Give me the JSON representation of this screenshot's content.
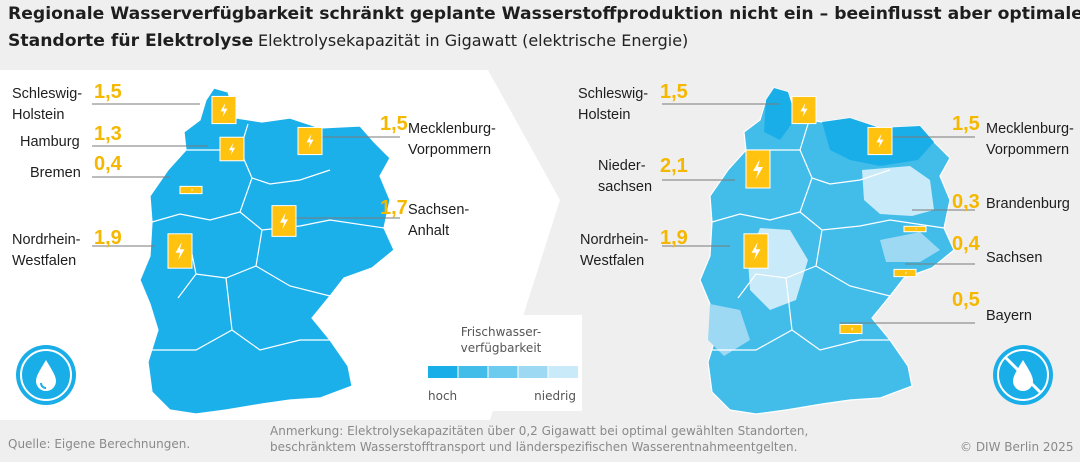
{
  "title": {
    "line1": "Regionale Wasserverfügbarkeit schränkt geplante Wasserstoffproduktion nicht ein – beeinflusst aber optimale",
    "line2": "Standorte für Elektrolyse",
    "subtitle": "Elektrolysekapazität in Gigawatt (elektrische Energie)"
  },
  "legend": {
    "title_line1": "Frischwasser-",
    "title_line2": "verfügbarkeit",
    "high": "hoch",
    "low": "niedrig",
    "colors": [
      "#1aaee8",
      "#42bdea",
      "#6ccbee",
      "#9dd9f3",
      "#c9eaf8"
    ]
  },
  "colors": {
    "map_left": "#1cb0ea",
    "accent": "#ffc20e",
    "label_value": "#f5b800",
    "border": "#ffffff",
    "leader": "#7a7a7a",
    "icon_circle": "#1aaee8"
  },
  "icons": [
    "water-drop-icon",
    "no-water-drop-icon",
    "lightning-icon",
    "arrow-icon"
  ],
  "chart_data": [
    {
      "type": "table",
      "panel": "left",
      "series": [
        {
          "region": [
            "Schleswig-",
            "Holstein"
          ],
          "value": 1.5,
          "value_label": "1,5"
        },
        {
          "region": [
            "Hamburg"
          ],
          "value": 1.3,
          "value_label": "1,3"
        },
        {
          "region": [
            "Bremen"
          ],
          "value": 0.4,
          "value_label": "0,4"
        },
        {
          "region": [
            "Nordrhein-",
            "Westfalen"
          ],
          "value": 1.9,
          "value_label": "1,9"
        },
        {
          "region": [
            "Mecklenburg-",
            "Vorpommern"
          ],
          "value": 1.5,
          "value_label": "1,5"
        },
        {
          "region": [
            "Sachsen-",
            "Anhalt"
          ],
          "value": 1.7,
          "value_label": "1,7"
        }
      ]
    },
    {
      "type": "table",
      "panel": "right",
      "series": [
        {
          "region": [
            "Schleswig-",
            "Holstein"
          ],
          "value": 1.5,
          "value_label": "1,5"
        },
        {
          "region": [
            "Nieder-",
            "sachsen"
          ],
          "value": 2.1,
          "value_label": "2,1"
        },
        {
          "region": [
            "Nordrhein-",
            "Westfalen"
          ],
          "value": 1.9,
          "value_label": "1,9"
        },
        {
          "region": [
            "Mecklenburg-",
            "Vorpommern"
          ],
          "value": 1.5,
          "value_label": "1,5"
        },
        {
          "region": [
            "Brandenburg"
          ],
          "value": 0.3,
          "value_label": "0,3"
        },
        {
          "region": [
            "Sachsen"
          ],
          "value": 0.4,
          "value_label": "0,4"
        },
        {
          "region": [
            "Bayern"
          ],
          "value": 0.5,
          "value_label": "0,5"
        }
      ]
    }
  ],
  "footer": {
    "source": "Quelle: Eigene Berechnungen.",
    "note_line1": "Anmerkung: Elektrolysekapazitäten über 0,2 Gigawatt bei optimal gewählten Standorten,",
    "note_line2": "beschränktem Wasserstofftransport und länderspezifischen Wasserentnahmeentgelten.",
    "copyright": "© DIW Berlin 2025"
  }
}
